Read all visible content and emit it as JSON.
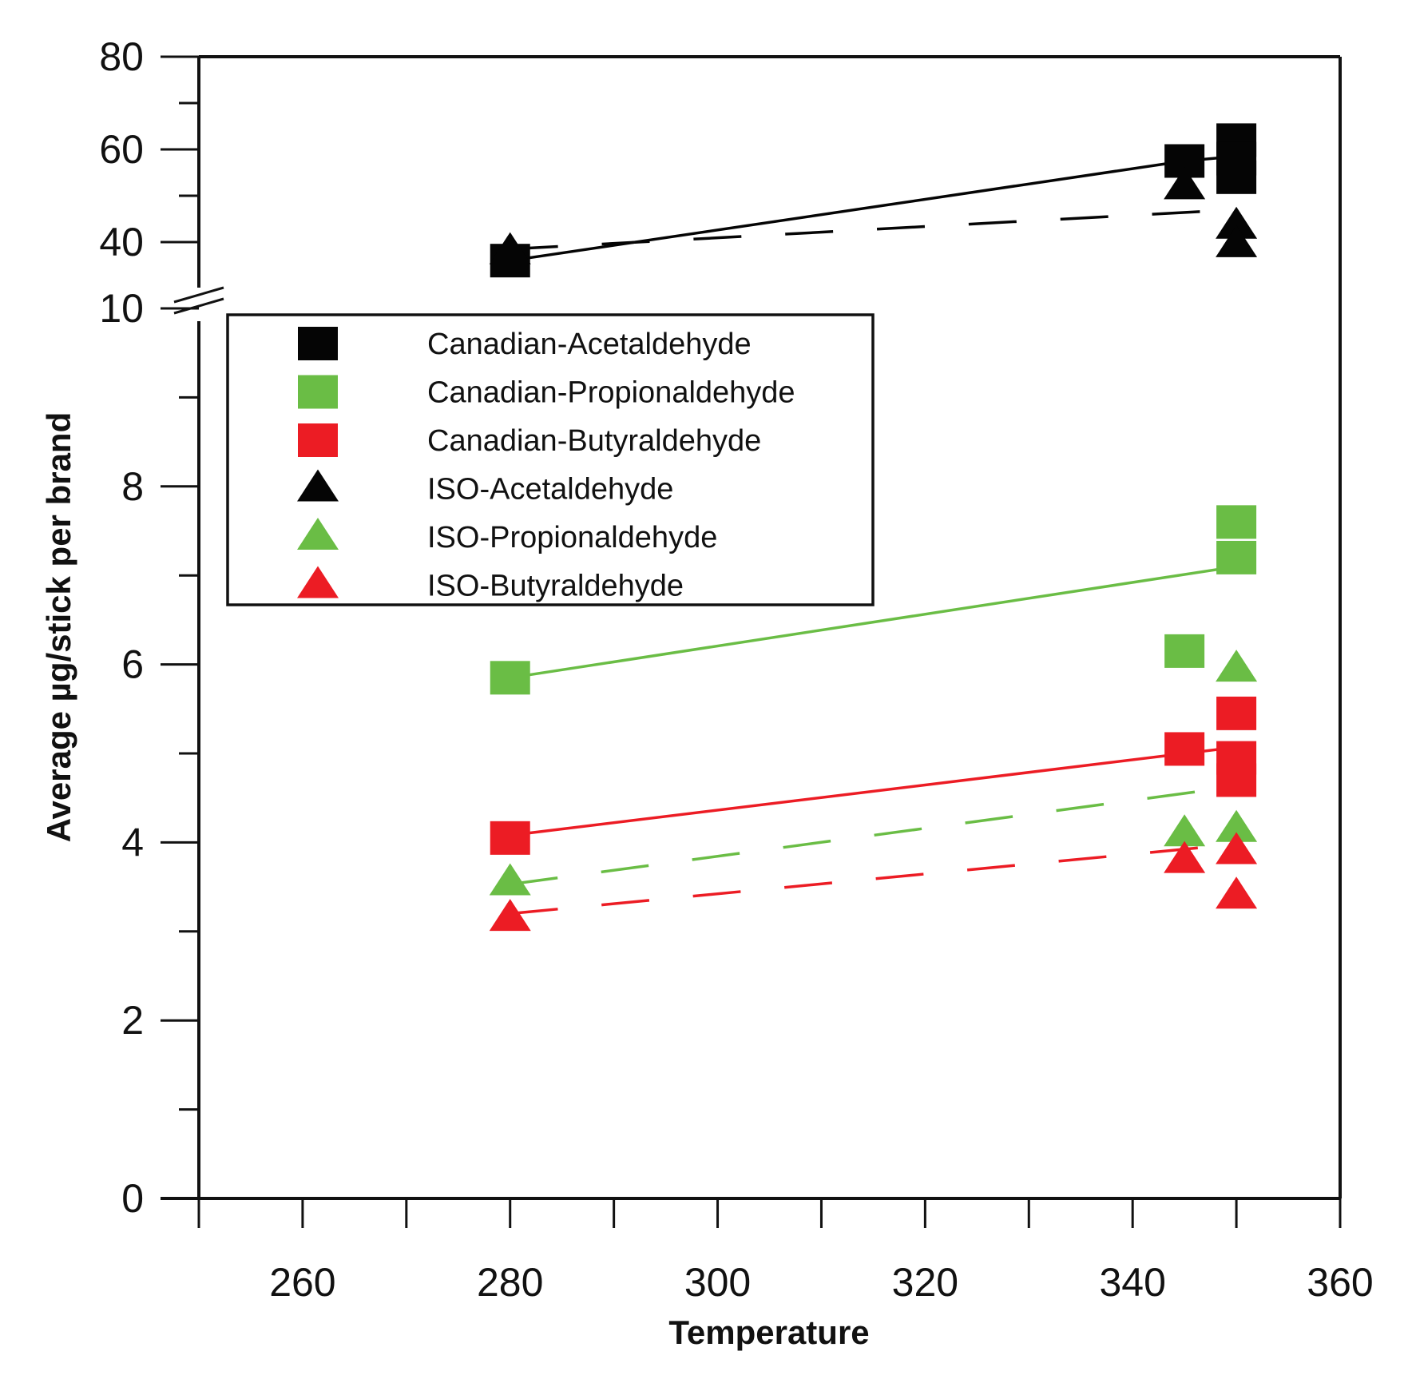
{
  "chart_data": {
    "type": "scatter",
    "title": "",
    "xlabel": "Temperature",
    "ylabel": "Average µg/stick per brand",
    "xlim": [
      250,
      360
    ],
    "x_ticks": [
      "260",
      "280",
      "300",
      "320",
      "340",
      "360"
    ],
    "ylim_lower": [
      0,
      10
    ],
    "ylim_upper": [
      40,
      80
    ],
    "y_ticks_lower": [
      "0",
      "2",
      "4",
      "6",
      "8",
      "10"
    ],
    "y_ticks_upper": [
      "40",
      "60",
      "80"
    ],
    "axis_break": "between 10 and 40",
    "legend_position": "upper-left",
    "colors": {
      "black": "#050505",
      "green": "#6abd45",
      "red": "#ec1c24"
    },
    "series": [
      {
        "name": "Canadian-Acetaldehyde",
        "marker": "square",
        "color": "black",
        "line": "solid",
        "points": [
          [
            280,
            36
          ],
          [
            345,
            57.5
          ],
          [
            350,
            62
          ],
          [
            350,
            58
          ],
          [
            350,
            54
          ]
        ],
        "fit": [
          [
            280,
            36
          ],
          [
            345,
            57.5
          ],
          [
            350,
            58.5
          ]
        ]
      },
      {
        "name": "Canadian-Propionaldehyde",
        "marker": "square",
        "color": "green",
        "line": "solid",
        "points": [
          [
            280,
            5.85
          ],
          [
            345,
            6.15
          ],
          [
            350,
            7.6
          ],
          [
            350,
            7.2
          ]
        ],
        "fit": [
          [
            280,
            5.85
          ],
          [
            350,
            7.1
          ]
        ]
      },
      {
        "name": "Canadian-Butyraldehyde",
        "marker": "square",
        "color": "red",
        "line": "solid",
        "points": [
          [
            280,
            4.05
          ],
          [
            345,
            5.05
          ],
          [
            350,
            5.45
          ],
          [
            350,
            4.95
          ],
          [
            350,
            4.7
          ]
        ],
        "fit": [
          [
            280,
            4.08
          ],
          [
            350,
            5.07
          ]
        ]
      },
      {
        "name": "ISO-Acetaldehyde",
        "marker": "triangle",
        "color": "black",
        "line": "dashed",
        "points": [
          [
            280,
            38
          ],
          [
            345,
            52
          ],
          [
            350,
            43.5
          ],
          [
            350,
            39.5
          ]
        ],
        "fit": [
          [
            280,
            38.5
          ],
          [
            350,
            47
          ]
        ]
      },
      {
        "name": "ISO-Propionaldehyde",
        "marker": "triangle",
        "color": "green",
        "line": "dashed",
        "points": [
          [
            280,
            3.55
          ],
          [
            345,
            4.1
          ],
          [
            350,
            5.95
          ],
          [
            350,
            4.15
          ]
        ],
        "fit": [
          [
            280,
            3.53
          ],
          [
            350,
            4.63
          ]
        ]
      },
      {
        "name": "ISO-Butyraldehyde",
        "marker": "triangle",
        "color": "red",
        "line": "dashed",
        "points": [
          [
            280,
            3.15
          ],
          [
            345,
            3.8
          ],
          [
            350,
            3.9
          ],
          [
            350,
            3.4
          ]
        ],
        "fit": [
          [
            280,
            3.2
          ],
          [
            350,
            3.98
          ]
        ]
      }
    ]
  }
}
